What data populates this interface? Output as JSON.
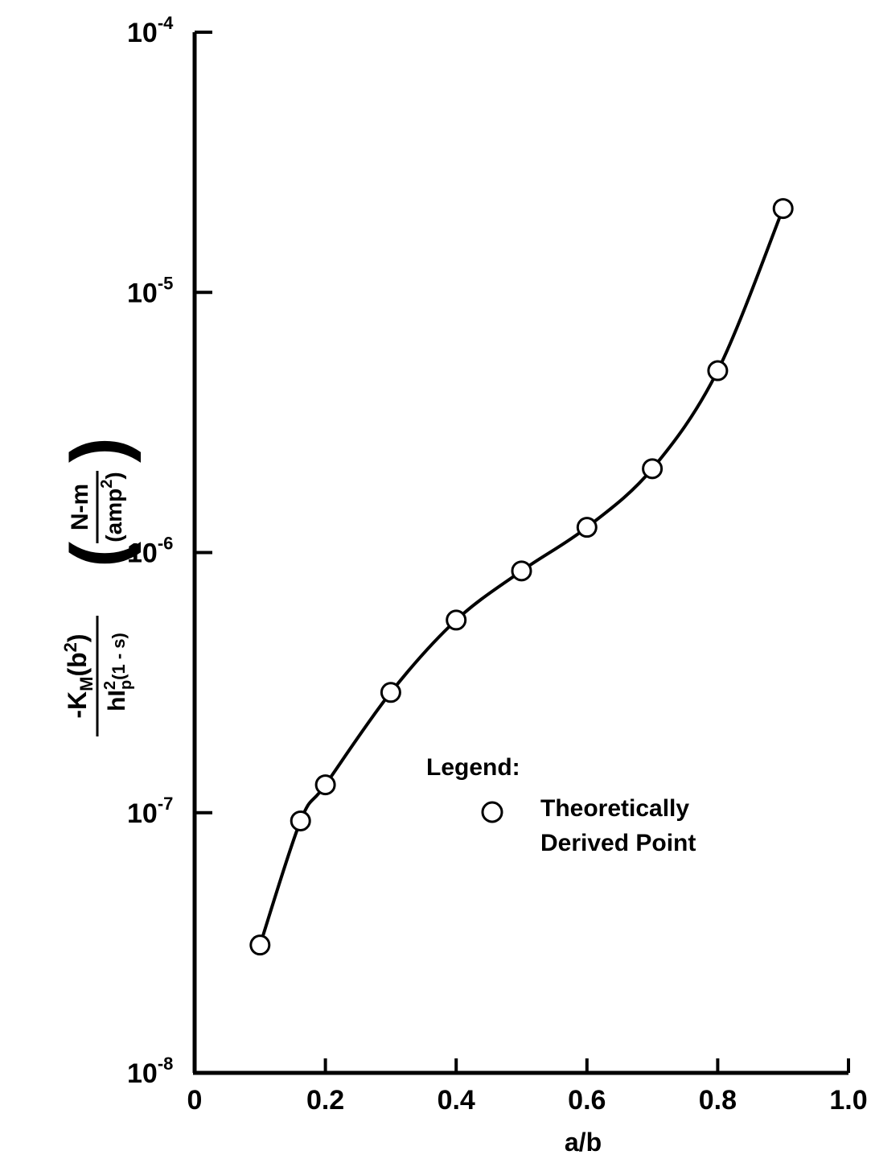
{
  "chart_data": {
    "type": "scatter",
    "title": "",
    "xlabel": "a/b",
    "ylabel": {
      "numerator": "-K",
      "numerator_sub": "M",
      "numerator_rest": "(b",
      "numerator_sup": "2",
      "numerator_close": ")",
      "denominator": "hI",
      "denominator_sup": "2",
      "denominator_sub": "p",
      "denominator_rest": "(1 - s)",
      "unit_top": "N-m",
      "unit_bottom": "(amp",
      "unit_bottom_sup": "2",
      "unit_bottom_close": ")"
    },
    "xlim": [
      0,
      1.0
    ],
    "ylim": [
      1e-08,
      0.0001
    ],
    "yscale": "log",
    "grid": false,
    "x_ticks": [
      {
        "value": 0,
        "label": "0"
      },
      {
        "value": 0.2,
        "label": "0.2"
      },
      {
        "value": 0.4,
        "label": "0.4"
      },
      {
        "value": 0.6,
        "label": "0.6"
      },
      {
        "value": 0.8,
        "label": "0.8"
      },
      {
        "value": 1.0,
        "label": "1.0"
      }
    ],
    "y_ticks": [
      {
        "value": 1e-08,
        "base": "10",
        "exp": "-8"
      },
      {
        "value": 1e-07,
        "base": "10",
        "exp": "-7"
      },
      {
        "value": 1e-06,
        "base": "10",
        "exp": "-6"
      },
      {
        "value": 1e-05,
        "base": "10",
        "exp": "-5"
      },
      {
        "value": 0.0001,
        "base": "10",
        "exp": "-4"
      }
    ],
    "series": [
      {
        "marker": "open-circle",
        "x": [
          0.1,
          0.162,
          0.2,
          0.3,
          0.4,
          0.5,
          0.6,
          0.7,
          0.8,
          0.9
        ],
        "y": [
          3.1e-08,
          9.3e-08,
          1.28e-07,
          2.9e-07,
          5.5e-07,
          8.5e-07,
          1.25e-06,
          2.1e-06,
          5e-06,
          2.1e-05
        ]
      }
    ],
    "legend": {
      "title": "Legend:",
      "entries": [
        {
          "marker": "open-circle",
          "line1": "Theoretically",
          "line2": "Derived Point"
        }
      ],
      "placement": "center"
    }
  }
}
